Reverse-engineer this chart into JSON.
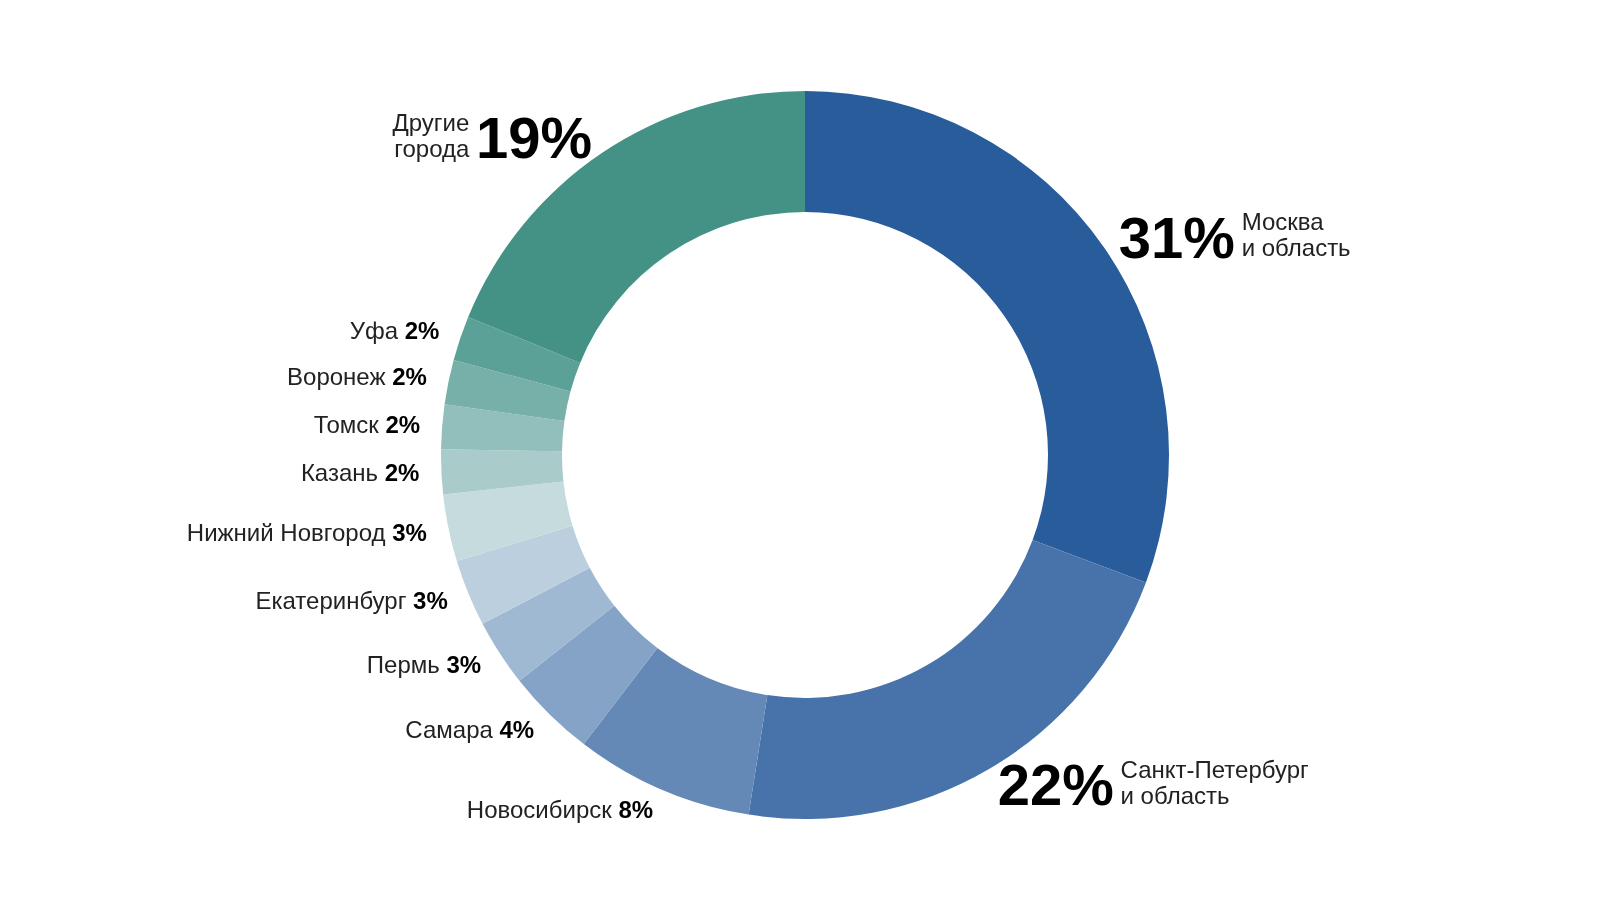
{
  "chart_data": {
    "type": "donut",
    "categories": [
      "Москва\nи область",
      "Санкт-Петербург\nи область",
      "Новосибирск",
      "Самара",
      "Пермь",
      "Екатеринбург",
      "Нижний Новгород",
      "Казань",
      "Томск",
      "Воронеж",
      "Уфа",
      "Другие\nгорода"
    ],
    "values": [
      31,
      22,
      8,
      4,
      3,
      3,
      3,
      2,
      2,
      2,
      2,
      19
    ],
    "value_labels": [
      "31%",
      "22%",
      "8%",
      "4%",
      "3%",
      "3%",
      "3%",
      "2%",
      "2%",
      "2%",
      "2%",
      "19%"
    ],
    "colors": [
      "#285c9b",
      "#4773aa",
      "#6489b6",
      "#84a3c6",
      "#a0b9d3",
      "#bccfdf",
      "#c5dbdd",
      "#a9ccca",
      "#92bfbb",
      "#76b0a9",
      "#5ca197",
      "#449285"
    ]
  }
}
